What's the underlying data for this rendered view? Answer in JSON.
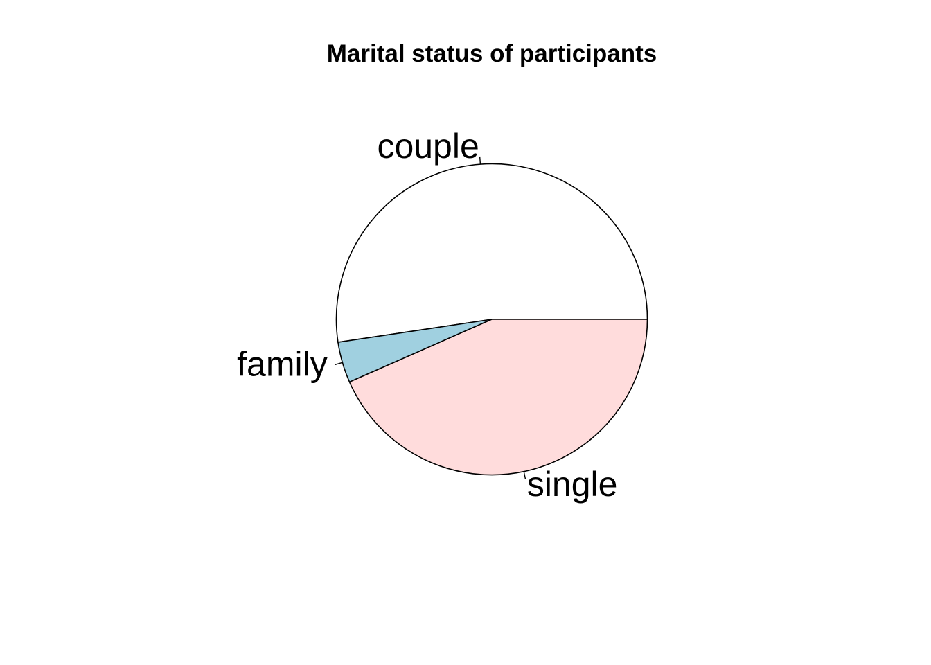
{
  "chart_data": {
    "type": "pie",
    "title": "Marital status of participants",
    "slices": [
      {
        "label": "couple",
        "value": 0.5235,
        "color": "#ffffff"
      },
      {
        "label": "family",
        "value": 0.0425,
        "color": "#a0d0e0"
      },
      {
        "label": "single",
        "value": 0.434,
        "color": "#ffdcdc"
      }
    ],
    "start_angle_deg": 0,
    "direction": "counterclockwise",
    "legend": "none"
  }
}
